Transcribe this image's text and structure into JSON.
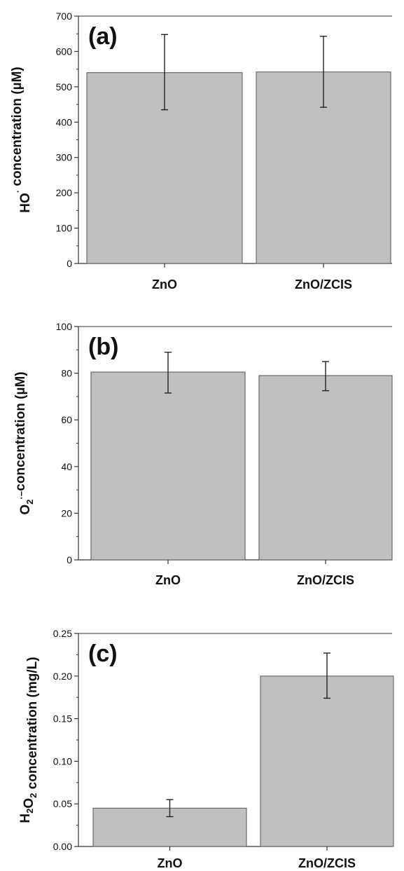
{
  "chart_data": [
    {
      "type": "bar",
      "panel_label": "(a)",
      "categories": [
        "ZnO",
        "ZnO/ZCIS"
      ],
      "values": [
        540,
        542
      ],
      "error": [
        [
          435,
          648
        ],
        [
          442,
          643
        ]
      ],
      "ylabel": {
        "parts": [
          {
            "text": "HO"
          },
          {
            "text": "·",
            "style": "sup"
          },
          {
            "text": " concentration (µM)"
          }
        ]
      },
      "ylim": [
        0,
        700
      ],
      "yticks": [
        0,
        100,
        200,
        300,
        400,
        500,
        600,
        700
      ],
      "tick_decimals": 0,
      "bar_color": "#c0c0c0",
      "grid": false
    },
    {
      "type": "bar",
      "panel_label": "(b)",
      "categories": [
        "ZnO",
        "ZnO/ZCIS"
      ],
      "values": [
        80.5,
        79
      ],
      "error": [
        [
          71.5,
          89
        ],
        [
          72.5,
          85
        ]
      ],
      "ylabel": {
        "parts": [
          {
            "text": "O"
          },
          {
            "text": "2",
            "style": "sub"
          },
          {
            "text": "·−",
            "style": "sup"
          },
          {
            "text": "concentration (µM)"
          }
        ]
      },
      "ylim": [
        0,
        100
      ],
      "yticks": [
        0,
        20,
        40,
        60,
        80,
        100
      ],
      "tick_decimals": 0,
      "bar_color": "#c0c0c0",
      "grid": false
    },
    {
      "type": "bar",
      "panel_label": "(c)",
      "categories": [
        "ZnO",
        "ZnO/ZCIS"
      ],
      "values": [
        0.045,
        0.2
      ],
      "error": [
        [
          0.035,
          0.055
        ],
        [
          0.174,
          0.227
        ]
      ],
      "ylabel": {
        "parts": [
          {
            "text": "H"
          },
          {
            "text": "2",
            "style": "sub"
          },
          {
            "text": "O"
          },
          {
            "text": "2",
            "style": "sub"
          },
          {
            "text": " concentration (mg/L)"
          }
        ]
      },
      "ylim": [
        0,
        0.25
      ],
      "yticks": [
        0,
        0.05,
        0.1,
        0.15,
        0.2,
        0.25
      ],
      "tick_decimals": 2,
      "bar_color": "#c0c0c0",
      "grid": false
    }
  ]
}
